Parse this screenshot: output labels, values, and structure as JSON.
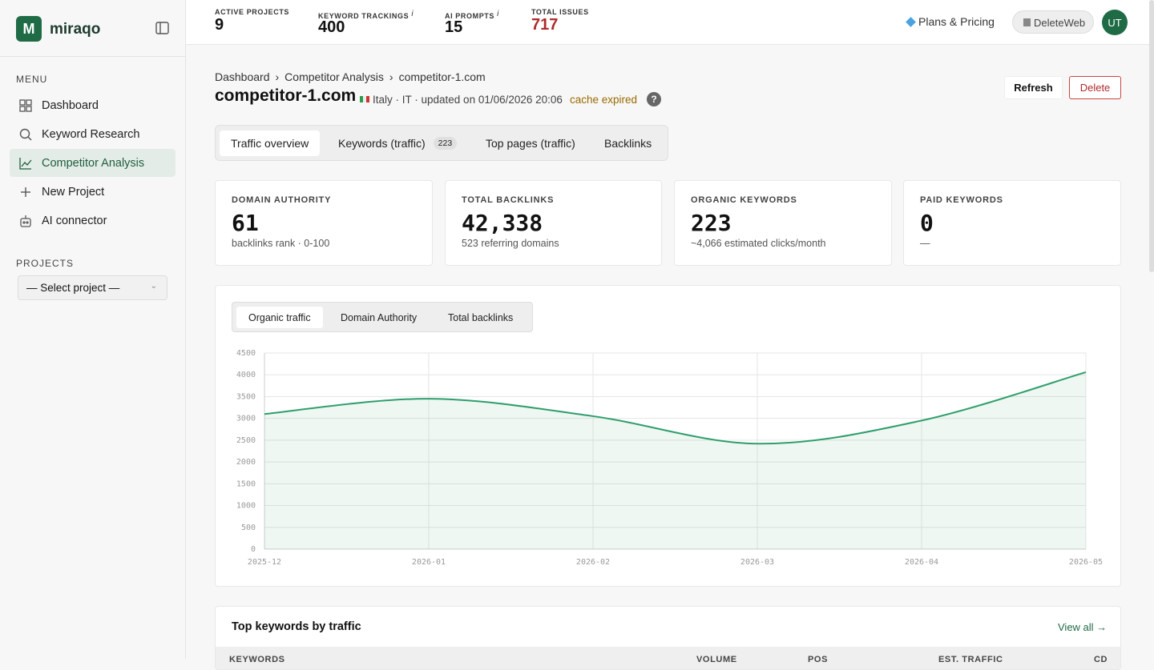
{
  "sidebar": {
    "logo": "miraqo",
    "menu_title": "MENU",
    "menu": [
      "Dashboard",
      "Keyword Research",
      "Competitor Analysis",
      "New Project",
      "AI connector"
    ],
    "projects_title": "PROJECTS",
    "project_select": "— Select project —"
  },
  "topbar": {
    "stats": [
      {
        "label": "ACTIVE PROJECTS",
        "value": 9
      },
      {
        "label": "KEYWORD TRACKINGS",
        "hint": "i",
        "value": 400
      },
      {
        "label": "AI PROMPTS",
        "hint": "i",
        "value": 15
      },
      {
        "label": "TOTAL ISSUES",
        "value": 717
      }
    ],
    "plans": "Plans & Pricing",
    "workspace": "DeleteWeb",
    "avatar": "UT"
  },
  "header": {
    "breadcrumb": [
      "Dashboard",
      "Competitor Analysis",
      "competitor-1.com"
    ],
    "title": "competitor-1.com",
    "meta": "Italy · IT · updated on 01/06/2026 20:06",
    "cache": "cache expired",
    "help": "?",
    "refresh": "Refresh",
    "delete": "Delete"
  },
  "tabs": [
    {
      "label": "Traffic overview"
    },
    {
      "label": "Keywords (traffic)",
      "badge": 223
    },
    {
      "label": "Top pages (traffic)"
    },
    {
      "label": "Backlinks"
    }
  ],
  "cards": [
    {
      "label": "DOMAIN AUTHORITY",
      "value": 61,
      "note": "backlinks rank · 0-100"
    },
    {
      "label": "TOTAL BACKLINKS",
      "value": "42,338",
      "note": "523 referring domains"
    },
    {
      "label": "ORGANIC KEYWORDS",
      "value": 223,
      "note": "~4,066 estimated clicks/month"
    },
    {
      "label": "PAID KEYWORDS",
      "value": 0,
      "note": "—"
    }
  ],
  "chart_tabs": [
    "Organic traffic",
    "Domain Authority",
    "Total backlinks"
  ],
  "chart_data": {
    "type": "line",
    "x": [
      "2025-12",
      "2026-01",
      "2026-02",
      "2026-03",
      "2026-04",
      "2026-05"
    ],
    "series": [
      {
        "name": "Organic traffic",
        "color": "#2f9e6b",
        "values": [
          3100,
          3450,
          3050,
          2420,
          2950,
          4060
        ]
      }
    ],
    "ylim": [
      0,
      4500
    ],
    "yticks": [
      0,
      500,
      1000,
      1500,
      2000,
      2500,
      3000,
      3500,
      4000,
      4500
    ],
    "grid": true
  },
  "keywords": {
    "title": "Top keywords by traffic",
    "view_all": "View all →",
    "columns": [
      "KEYWORDS",
      "VOLUME",
      "POS",
      "EST. TRAFFIC",
      "CD"
    ]
  }
}
